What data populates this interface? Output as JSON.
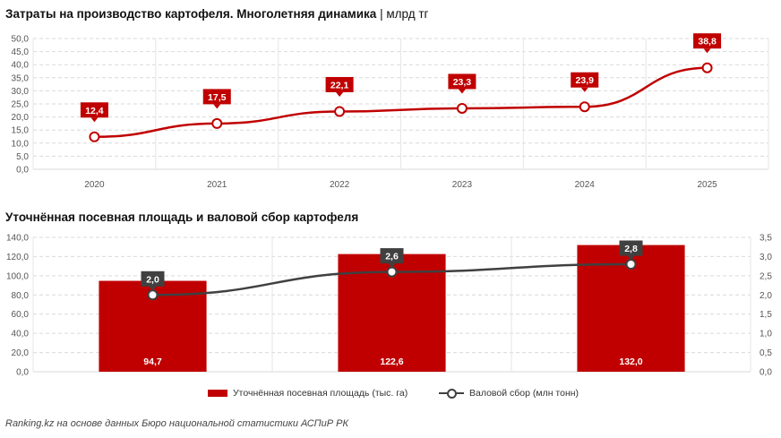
{
  "chart1": {
    "title": "Затраты на производство картофеля. Многолетняя динамика",
    "unit": "| млрд тг"
  },
  "chart2": {
    "title": "Уточнённая посевная площадь и валовой сбор картофеля"
  },
  "legend": {
    "bar_label": "Уточнённая посевная площадь (тыс. га)",
    "line_label": "Валовой сбор (млн тонн)"
  },
  "source": "Ranking.kz на основе данных Бюро национальной статистики АСПиР РК",
  "colors": {
    "red": "#c00000",
    "dark": "#404040",
    "grid": "#d9d9d9"
  },
  "chart_data": [
    {
      "type": "line",
      "title": "Затраты на производство картофеля. Многолетняя динамика",
      "ylabel": "млрд тг",
      "x": [
        "2020",
        "2021",
        "2022",
        "2023",
        "2024",
        "2025"
      ],
      "series": [
        {
          "values": [
            12.4,
            17.5,
            22.1,
            23.3,
            23.9,
            38.8
          ],
          "labels": [
            "12,4",
            "17,5",
            "22,1",
            "23,3",
            "23,9",
            "38,8"
          ]
        }
      ],
      "ylim": [
        0,
        50
      ],
      "yticks": [
        "0,0",
        "5,0",
        "10,0",
        "15,0",
        "20,0",
        "25,0",
        "30,0",
        "35,0",
        "40,0",
        "45,0",
        "50,0"
      ],
      "grid": true
    },
    {
      "type": "bar",
      "title": "Уточнённая посевная площадь и валовой сбор картофеля",
      "categories": [
        "",
        "",
        ""
      ],
      "series": [
        {
          "name": "Уточнённая посевная площадь (тыс. га)",
          "axis": "left",
          "values": [
            94.7,
            122.6,
            132.0
          ],
          "labels": [
            "94,7",
            "122,6",
            "132,0"
          ]
        },
        {
          "name": "Валовой сбор (млн тонн)",
          "axis": "right",
          "type": "line",
          "values": [
            2.0,
            2.6,
            2.8
          ],
          "labels": [
            "2,0",
            "2,6",
            "2,8"
          ]
        }
      ],
      "ylim": [
        0,
        140
      ],
      "y2lim": [
        0,
        3.5
      ],
      "yticks": [
        "0,0",
        "20,0",
        "40,0",
        "60,0",
        "80,0",
        "100,0",
        "120,0",
        "140,0"
      ],
      "y2ticks": [
        "0,0",
        "0,5",
        "1,0",
        "1,5",
        "2,0",
        "2,5",
        "3,0",
        "3,5"
      ],
      "legend": "bottom",
      "grid": true
    }
  ]
}
